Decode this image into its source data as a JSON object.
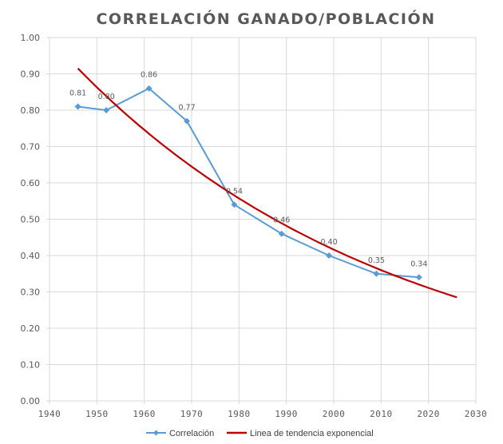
{
  "chart_data": {
    "type": "line",
    "title": "CORRELACIÓN GANADO/POBLACIÓN",
    "xlabel": "",
    "ylabel": "",
    "xlim": [
      1940,
      2030
    ],
    "ylim": [
      0.0,
      1.0
    ],
    "x_ticks": [
      "1940",
      "1950",
      "1960",
      "1970",
      "1980",
      "1990",
      "2000",
      "2010",
      "2020",
      "2030"
    ],
    "y_ticks": [
      "0.00",
      "0.10",
      "0.20",
      "0.30",
      "0.40",
      "0.50",
      "0.60",
      "0.70",
      "0.80",
      "0.90",
      "1.00"
    ],
    "grid": true,
    "legend_position": "bottom",
    "series": [
      {
        "name": "Correlación",
        "color": "#5B9BD5",
        "marker": "diamond",
        "x": [
          1946,
          1952,
          1961,
          1969,
          1979,
          1989,
          1999,
          2009,
          2018
        ],
        "values": [
          0.81,
          0.8,
          0.86,
          0.77,
          0.54,
          0.46,
          0.4,
          0.35,
          0.34
        ],
        "labels": [
          "0.81",
          "0.80",
          "0.86",
          "0.77",
          "0.54",
          "0.46",
          "0.40",
          "0.35",
          "0.34"
        ]
      },
      {
        "name": "Linea de tendencia exponencial",
        "color": "#C00000",
        "type": "exponential-trend",
        "x_range": [
          1946,
          2026
        ],
        "y_start": 0.915,
        "y_end": 0.285
      }
    ]
  }
}
